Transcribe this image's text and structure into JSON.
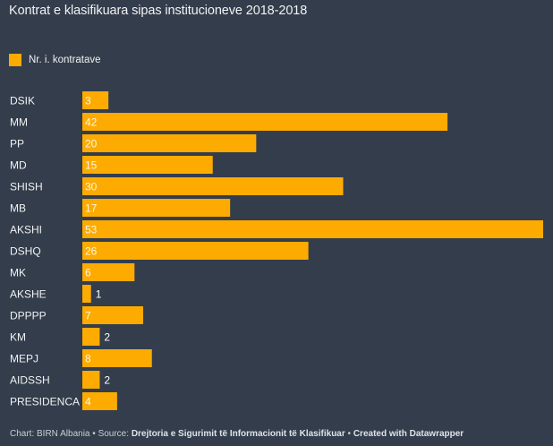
{
  "chart_data": {
    "type": "bar",
    "orientation": "horizontal",
    "title": "Kontrat e klasifikuara sipas institucioneve 2018-2018",
    "legend": [
      {
        "label": "Nr. i. kontratave",
        "color": "#fdab00"
      }
    ],
    "legend_placement": "top-left",
    "categories": [
      "DSIK",
      "MM",
      "PP",
      "MD",
      "SHISH",
      "MB",
      "AKSHI",
      "DSHQ",
      "MK",
      "AKSHE",
      "DPPPP",
      "KM",
      "MEPJ",
      "AIDSSH",
      "PRESIDENCA"
    ],
    "series": [
      {
        "name": "Nr. i. kontratave",
        "values": [
          3,
          42,
          20,
          15,
          30,
          17,
          53,
          26,
          6,
          1,
          7,
          2,
          8,
          2,
          4
        ],
        "color": "#fdab00"
      }
    ],
    "xlim": [
      0,
      53
    ],
    "grid": false,
    "xlabel": "",
    "ylabel": ""
  },
  "footer": {
    "chart_label": "Chart: BIRN Albania",
    "separator": " • ",
    "source_label": "Source: ",
    "source_name": "Drejtoria e Sigurimit të Informacionit të Klasifikuar",
    "created_with": "Created with Datawrapper"
  },
  "colors": {
    "background": "#333d4c",
    "bar": "#fdab00",
    "text": "#ffffff"
  }
}
